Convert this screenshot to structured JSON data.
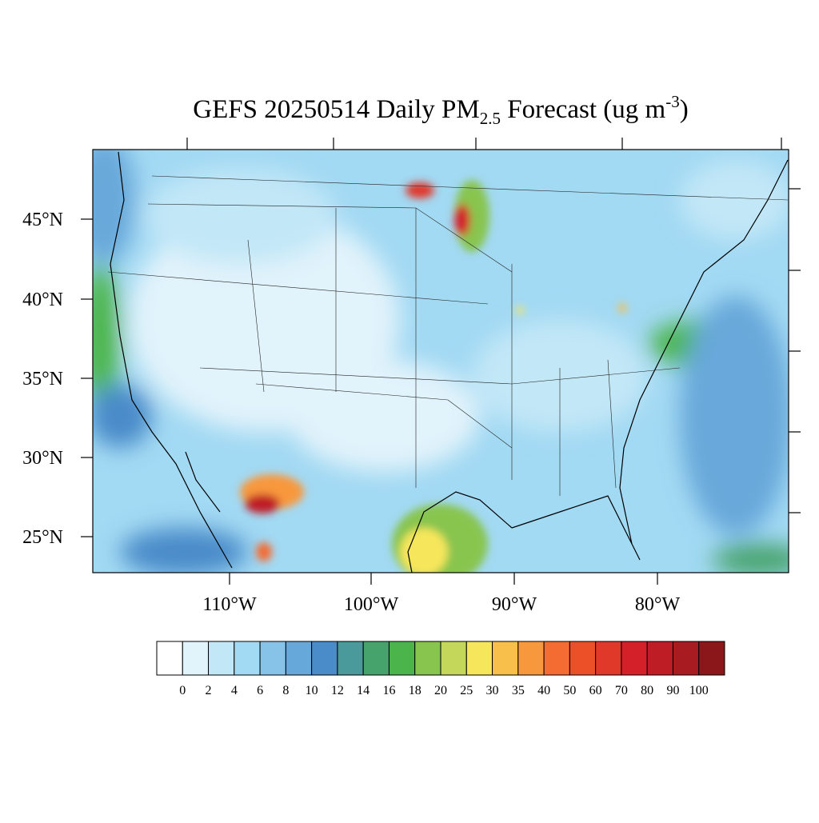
{
  "map": {
    "title": {
      "main": "GEFS 20250514 Daily PM",
      "subscript": "2.5",
      "middle": " Forecast (ug m",
      "superscript": "-3",
      "end": ")"
    },
    "lat_labels": [
      "45°N",
      "40°N",
      "35°N",
      "30°N",
      "25°N"
    ],
    "lon_labels": [
      "110°W",
      "100°W",
      "90°W",
      "80°W"
    ],
    "colorbar": {
      "levels": [
        0,
        2,
        4,
        6,
        8,
        10,
        12,
        14,
        16,
        18,
        20,
        25,
        30,
        35,
        40,
        50,
        60,
        70,
        80,
        90,
        100
      ],
      "colors": [
        "#ffffff",
        "#e1f3fb",
        "#c2e7f7",
        "#a2d9f3",
        "#87c3e8",
        "#67a8da",
        "#4a8bc9",
        "#4a999b",
        "#47a36c",
        "#4bb54b",
        "#88c54f",
        "#c5d75b",
        "#f6e65b",
        "#f8c04b",
        "#f8983d",
        "#f46c31",
        "#eb5029",
        "#e03929",
        "#d32029",
        "#bf1d25",
        "#a81b21",
        "#8b171b"
      ]
    }
  }
}
